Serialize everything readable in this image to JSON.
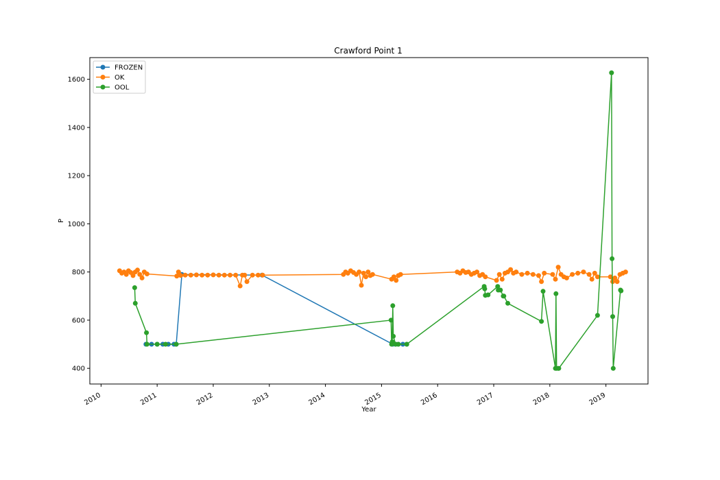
{
  "chart_data": {
    "type": "line",
    "title": "Crawford Point 1",
    "xlabel": "Year",
    "ylabel": "P",
    "xlim": [
      2009.8,
      2019.75
    ],
    "ylim": [
      335,
      1690
    ],
    "x_ticks": [
      2010,
      2011,
      2012,
      2013,
      2014,
      2015,
      2016,
      2017,
      2018,
      2019
    ],
    "x_tick_labels": [
      "2010",
      "2011",
      "2012",
      "2013",
      "2014",
      "2015",
      "2016",
      "2017",
      "2018",
      "2019"
    ],
    "y_ticks": [
      400,
      600,
      800,
      1000,
      1200,
      1400,
      1600
    ],
    "y_tick_labels": [
      "400",
      "600",
      "800",
      "1000",
      "1200",
      "1400",
      "1600"
    ],
    "grid": false,
    "legend_position": "top-left",
    "series": [
      {
        "name": "FROZEN",
        "color": "#1f77b4",
        "x": [
          2010.8,
          2010.9,
          2011.0,
          2011.1,
          2011.2,
          2011.3,
          2011.34,
          2011.44,
          2012.87,
          2015.2,
          2015.25,
          2015.3,
          2015.38,
          2015.45
        ],
        "y": [
          500,
          500,
          500,
          500,
          500,
          500,
          500,
          790,
          787,
          500,
          500,
          500,
          500,
          500
        ]
      },
      {
        "name": "OK",
        "color": "#ff7f0e",
        "x": [
          2010.33,
          2010.37,
          2010.41,
          2010.45,
          2010.49,
          2010.53,
          2010.57,
          2010.61,
          2010.65,
          2010.69,
          2010.73,
          2010.77,
          2010.82,
          2011.35,
          2011.38,
          2011.42,
          2011.5,
          2011.6,
          2011.7,
          2011.8,
          2011.9,
          2012.0,
          2012.1,
          2012.2,
          2012.3,
          2012.4,
          2012.48,
          2012.52,
          2012.56,
          2012.6,
          2012.7,
          2012.8,
          2012.88,
          2014.32,
          2014.36,
          2014.4,
          2014.45,
          2014.5,
          2014.55,
          2014.6,
          2014.64,
          2014.68,
          2014.72,
          2014.76,
          2014.8,
          2014.84,
          2015.18,
          2015.22,
          2015.26,
          2015.3,
          2015.34,
          2016.35,
          2016.4,
          2016.45,
          2016.5,
          2016.55,
          2016.6,
          2016.65,
          2016.7,
          2016.75,
          2016.8,
          2016.85,
          2017.05,
          2017.1,
          2017.15,
          2017.2,
          2017.25,
          2017.3,
          2017.35,
          2017.4,
          2017.5,
          2017.6,
          2017.7,
          2017.8,
          2017.85,
          2017.9,
          2018.05,
          2018.1,
          2018.15,
          2018.2,
          2018.25,
          2018.3,
          2018.4,
          2018.5,
          2018.6,
          2018.7,
          2018.75,
          2018.8,
          2018.85,
          2019.08,
          2019.12,
          2019.16,
          2019.2,
          2019.25,
          2019.3,
          2019.35
        ],
        "y": [
          805,
          795,
          800,
          790,
          805,
          798,
          785,
          800,
          808,
          790,
          775,
          800,
          792,
          783,
          800,
          786,
          787,
          787,
          788,
          787,
          787,
          788,
          787,
          787,
          787,
          787,
          742,
          787,
          787,
          760,
          787,
          787,
          787,
          790,
          800,
          795,
          805,
          798,
          790,
          800,
          745,
          795,
          780,
          800,
          785,
          790,
          770,
          780,
          765,
          785,
          790,
          800,
          795,
          805,
          798,
          800,
          790,
          795,
          800,
          785,
          790,
          780,
          765,
          790,
          770,
          795,
          800,
          810,
          795,
          800,
          790,
          795,
          790,
          785,
          760,
          795,
          790,
          770,
          820,
          790,
          780,
          775,
          790,
          795,
          800,
          790,
          770,
          795,
          780,
          780,
          760,
          775,
          760,
          790,
          795,
          800
        ]
      },
      {
        "name": "OOL",
        "color": "#2ca02c",
        "x": [
          2010.6,
          2010.61,
          2010.81,
          2010.82,
          2011.0,
          2011.15,
          2011.34,
          2015.17,
          2015.18,
          2015.19,
          2015.2,
          2015.21,
          2015.25,
          2015.3,
          2015.45,
          2016.83,
          2016.84,
          2016.85,
          2016.9,
          2017.07,
          2017.08,
          2017.12,
          2017.17,
          2017.18,
          2017.25,
          2017.85,
          2017.88,
          2018.1,
          2018.11,
          2018.12,
          2018.15,
          2018.16,
          2018.85,
          2019.1,
          2019.11,
          2019.12,
          2019.13,
          2019.26,
          2019.27
        ],
        "y": [
          735,
          670,
          548,
          500,
          500,
          500,
          500,
          600,
          500,
          510,
          660,
          533,
          500,
          500,
          500,
          740,
          730,
          703,
          705,
          740,
          725,
          725,
          700,
          700,
          670,
          595,
          720,
          400,
          710,
          400,
          400,
          400,
          620,
          1627,
          855,
          615,
          400,
          725,
          722
        ]
      }
    ]
  }
}
